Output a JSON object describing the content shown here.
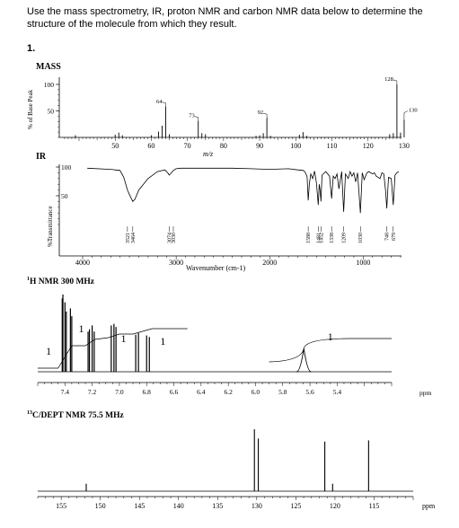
{
  "instructions": "Use the mass spectrometry, IR, proton NMR and carbon NMR data below to determine the structure of the molecule from which they result.",
  "problem_number": "1.",
  "chart_data": [
    {
      "type": "bar",
      "title": "MASS",
      "xlabel": "m/z",
      "ylabel": "% of Base Peak",
      "xlim": [
        40,
        133
      ],
      "ylim": [
        0,
        100
      ],
      "x_ticks": [
        "50",
        "60",
        "70",
        "80",
        "90",
        "100",
        "110",
        "120",
        "130"
      ],
      "y_ticks": [
        "50",
        "100"
      ],
      "peaks": [
        {
          "x": 39,
          "y": 4
        },
        {
          "x": 50,
          "y": 5
        },
        {
          "x": 51,
          "y": 9
        },
        {
          "x": 52,
          "y": 4
        },
        {
          "x": 60,
          "y": 4
        },
        {
          "x": 62,
          "y": 11
        },
        {
          "x": 63,
          "y": 22
        },
        {
          "x": 64,
          "y": 58
        },
        {
          "x": 65,
          "y": 6
        },
        {
          "x": 73,
          "y": 31
        },
        {
          "x": 74,
          "y": 8
        },
        {
          "x": 75,
          "y": 6
        },
        {
          "x": 89,
          "y": 3
        },
        {
          "x": 90,
          "y": 4
        },
        {
          "x": 91,
          "y": 8
        },
        {
          "x": 92,
          "y": 37
        },
        {
          "x": 93,
          "y": 3
        },
        {
          "x": 101,
          "y": 5
        },
        {
          "x": 102,
          "y": 10
        },
        {
          "x": 103,
          "y": 3
        },
        {
          "x": 126,
          "y": 6
        },
        {
          "x": 127,
          "y": 8
        },
        {
          "x": 128,
          "y": 100
        },
        {
          "x": 129,
          "y": 9
        },
        {
          "x": 130,
          "y": 33
        }
      ],
      "peak_labels": [
        {
          "x": 64,
          "text": "64"
        },
        {
          "x": 73,
          "text": "73"
        },
        {
          "x": 92,
          "text": "92"
        },
        {
          "x": 128,
          "text": "128"
        },
        {
          "x": 130,
          "text": "130"
        }
      ]
    },
    {
      "type": "line",
      "title": "IR",
      "xlabel": "Wavenumber (cm-1)",
      "ylabel": "%Transmittance",
      "xlim": [
        4000,
        600
      ],
      "ylim": [
        0,
        100
      ],
      "x_ticks": [
        "4000",
        "3000",
        "2000",
        "1000"
      ],
      "y_ticks": [
        "50",
        "100"
      ],
      "series": [
        {
          "x": [
            3950,
            3700,
            3600,
            3560,
            3521,
            3500,
            3464,
            3440,
            3400,
            3300,
            3200,
            3120,
            3090,
            3074,
            3050,
            3030,
            3000,
            2950,
            2800,
            2600,
            2400,
            2200,
            2000,
            1800,
            1700,
            1640,
            1620,
            1600,
            1588,
            1575,
            1560,
            1540,
            1520,
            1500,
            1481,
            1470,
            1460,
            1452,
            1440,
            1400,
            1360,
            1338,
            1320,
            1300,
            1280,
            1260,
            1230,
            1209,
            1190,
            1160,
            1140,
            1120,
            1100,
            1080,
            1060,
            1030,
            1010,
            990,
            960,
            940,
            900,
            880,
            860,
            820,
            800,
            780,
            760,
            748,
            730,
            700,
            679,
            660,
            640,
            620
          ],
          "y": [
            98,
            96,
            94,
            82,
            60,
            52,
            40,
            44,
            60,
            80,
            92,
            95,
            90,
            86,
            90,
            94,
            97,
            98,
            98,
            98,
            98,
            97,
            96,
            97,
            95,
            94,
            91,
            83,
            42,
            72,
            88,
            80,
            93,
            72,
            34,
            70,
            58,
            40,
            86,
            92,
            84,
            45,
            84,
            80,
            88,
            62,
            92,
            22,
            88,
            80,
            92,
            84,
            90,
            74,
            90,
            20,
            90,
            78,
            90,
            92,
            88,
            90,
            84,
            80,
            90,
            88,
            58,
            28,
            82,
            80,
            34,
            86,
            90,
            92
          ]
        }
      ],
      "peak_labels": [
        "3521",
        "3464",
        "3074",
        "3030",
        "1588",
        "1481",
        "1452",
        "1338",
        "1209",
        "1030",
        "748",
        "679"
      ]
    },
    {
      "type": "line",
      "title": "1H NMR 300 MHz",
      "xlabel": "ppm",
      "xlim": [
        7.6,
        5.0
      ],
      "x_ticks": [
        "7.4",
        "7.2",
        "7.0",
        "6.8",
        "6.6",
        "6.4",
        "6.2",
        "6.0",
        "5.8",
        "5.6",
        "5.4"
      ],
      "peaks": [
        {
          "x": 7.42,
          "y": 95
        },
        {
          "x": 7.415,
          "y": 100
        },
        {
          "x": 7.4,
          "y": 90
        },
        {
          "x": 7.39,
          "y": 78
        },
        {
          "x": 7.36,
          "y": 82
        },
        {
          "x": 7.35,
          "y": 72
        },
        {
          "x": 7.23,
          "y": 52
        },
        {
          "x": 7.22,
          "y": 55
        },
        {
          "x": 7.2,
          "y": 60
        },
        {
          "x": 7.185,
          "y": 52
        },
        {
          "x": 7.06,
          "y": 60
        },
        {
          "x": 7.04,
          "y": 62
        },
        {
          "x": 7.025,
          "y": 58
        },
        {
          "x": 6.88,
          "y": 48
        },
        {
          "x": 6.86,
          "y": 50
        },
        {
          "x": 6.8,
          "y": 47
        },
        {
          "x": 6.78,
          "y": 45
        },
        {
          "x": 5.645,
          "y": 30
        }
      ],
      "integration_labels": [
        {
          "x": 7.52,
          "text": "1"
        },
        {
          "x": 7.28,
          "text": "1"
        },
        {
          "x": 6.97,
          "text": "1"
        },
        {
          "x": 6.68,
          "text": "1"
        },
        {
          "x": 5.45,
          "text": "1"
        }
      ]
    },
    {
      "type": "line",
      "title": "13C/DEPT NMR 75.5 MHz",
      "xlabel": "ppm",
      "xlim": [
        158,
        110
      ],
      "x_ticks": [
        "155",
        "150",
        "145",
        "140",
        "135",
        "130",
        "125",
        "120",
        "115"
      ],
      "peaks": [
        {
          "x": 151.8,
          "y": 12
        },
        {
          "x": 130.3,
          "y": 100
        },
        {
          "x": 129.8,
          "y": 85
        },
        {
          "x": 121.3,
          "y": 80
        },
        {
          "x": 120.3,
          "y": 12
        },
        {
          "x": 115.7,
          "y": 82
        }
      ]
    }
  ],
  "labels": {
    "mass_title": "MASS",
    "mass_ylabel": "% of Base Peak",
    "mass_xlabel": "m/z",
    "ir_title": "IR",
    "ir_ylabel": "%Transmittance",
    "ir_xlabel": "Wavenumber (cm-1)",
    "hnmr_title_sup": "1",
    "hnmr_title": "H NMR 300 MHz",
    "hnmr_xunit": "ppm",
    "cnmr_title_sup": "13",
    "cnmr_title": "C/DEPT NMR 75.5 MHz",
    "cnmr_xunit": "ppm"
  }
}
